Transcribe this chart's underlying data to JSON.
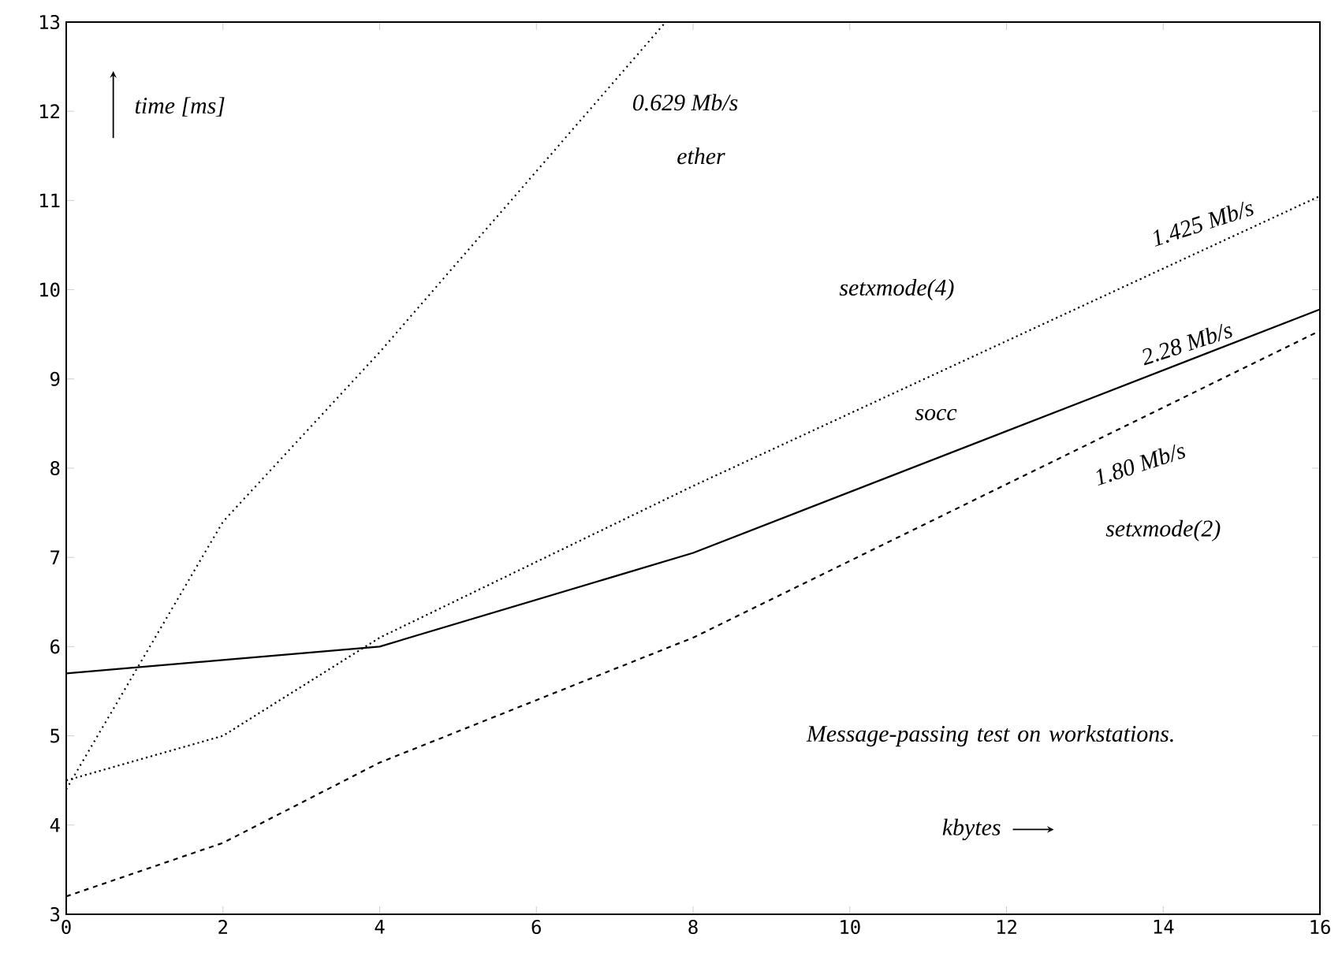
{
  "chart_data": {
    "type": "line",
    "xlabel": "kbytes",
    "ylabel": "time [ms]",
    "xlim": [
      0,
      16
    ],
    "ylim": [
      3,
      13
    ],
    "xticks": [
      0,
      2,
      4,
      6,
      8,
      10,
      12,
      14,
      16
    ],
    "yticks": [
      3,
      4,
      5,
      6,
      7,
      8,
      9,
      10,
      11,
      12,
      13
    ],
    "grid": false,
    "legend": false,
    "marker": "none",
    "x": [
      0,
      2,
      4,
      8,
      16
    ],
    "series": [
      {
        "name": "0.629 Mb/s",
        "color": "#000000",
        "line_style": "dotted",
        "x": [
          0,
          2,
          4,
          7.65
        ],
        "values": [
          4.4,
          7.4,
          9.3,
          13
        ]
      },
      {
        "name": "1.425 Mb/s",
        "color": "#000000",
        "line_style": "dotted",
        "values": [
          4.5,
          5.0,
          6.1,
          7.8,
          11.05
        ]
      },
      {
        "name": "2.28 Mb/s",
        "color": "#000000",
        "line_style": "solid",
        "values": [
          5.7,
          5.85,
          6.0,
          7.05,
          9.78
        ]
      },
      {
        "name": "1.80 Mb/s",
        "color": "#000000",
        "line_style": "dashed",
        "values": [
          3.2,
          3.8,
          4.7,
          6.1,
          9.54
        ]
      }
    ],
    "annotations": [
      "ether",
      "setxmode(4)",
      "socc",
      "setxmode(2)",
      "Message-passing test on workstations."
    ]
  }
}
